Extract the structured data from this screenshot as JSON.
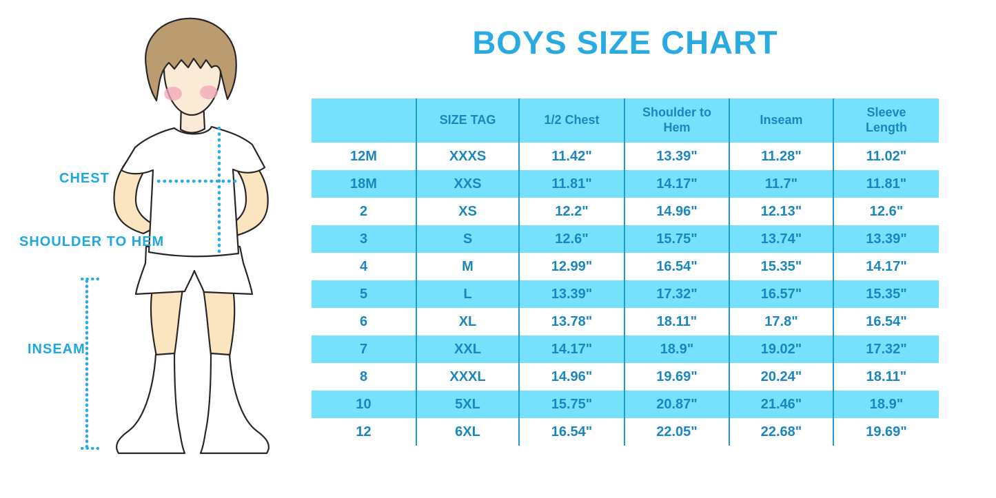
{
  "title": "BOYS SIZE CHART",
  "colors": {
    "accent_blue": "#29ABE2",
    "stripe_cyan": "#75E1FD",
    "table_text_blue": "#1A86BE",
    "divider_blue": "#1E9CD2",
    "skin": "#FAE5C0",
    "face_skin": "#FBEAD6",
    "hair_brown": "#BB9B70",
    "blush_pink": "#EFA6B7",
    "outline": "#2A2627"
  },
  "illustration": {
    "figure": "boy-in-tshirt-shorts-and-socks",
    "labels": {
      "chest": "CHEST",
      "shoulder_to_hem": "SHOULDER TO HEM",
      "inseam": "INSEAM"
    }
  },
  "chart_data": {
    "type": "table",
    "title": "BOYS SIZE CHART",
    "headers": [
      "",
      "SIZE TAG",
      "1/2 Chest",
      "Shoulder to Hem",
      "Inseam",
      "Sleeve Length"
    ],
    "row_labels": [
      "12M",
      "18M",
      "2",
      "3",
      "4",
      "5",
      "6",
      "7",
      "8",
      "10",
      "12"
    ],
    "rows": [
      [
        "12M",
        "XXXS",
        "11.42\"",
        "13.39\"",
        "11.28\"",
        "11.02\""
      ],
      [
        "18M",
        "XXS",
        "11.81\"",
        "14.17\"",
        "11.7\"",
        "11.81\""
      ],
      [
        "2",
        "XS",
        "12.2\"",
        "14.96\"",
        "12.13\"",
        "12.6\""
      ],
      [
        "3",
        "S",
        "12.6\"",
        "15.75\"",
        "13.74\"",
        "13.39\""
      ],
      [
        "4",
        "M",
        "12.99\"",
        "16.54\"",
        "15.35\"",
        "14.17\""
      ],
      [
        "5",
        "L",
        "13.39\"",
        "17.32\"",
        "16.57\"",
        "15.35\""
      ],
      [
        "6",
        "XL",
        "13.78\"",
        "18.11\"",
        "17.8\"",
        "16.54\""
      ],
      [
        "7",
        "XXL",
        "14.17\"",
        "18.9\"",
        "19.02\"",
        "17.32\""
      ],
      [
        "8",
        "XXXL",
        "14.96\"",
        "19.69\"",
        "20.24\"",
        "18.11\""
      ],
      [
        "10",
        "5XL",
        "15.75\"",
        "20.87\"",
        "21.46\"",
        "18.9\""
      ],
      [
        "12",
        "6XL",
        "16.54\"",
        "22.05\"",
        "22.68\"",
        "19.69\""
      ]
    ]
  }
}
